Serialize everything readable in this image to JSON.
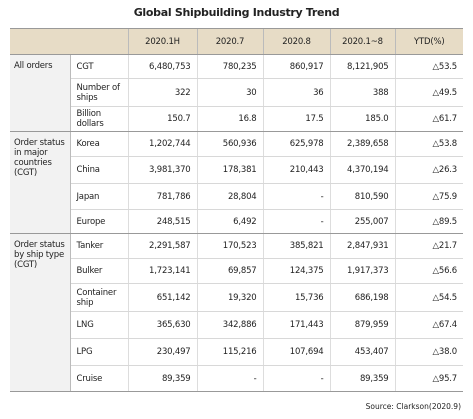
{
  "title": "Global Shipbuilding Industry Trend",
  "table": {
    "header": [
      "2020.1H",
      "2020.7",
      "2020.8",
      "2020.1~8",
      "YTD(%)"
    ],
    "groups": [
      {
        "label": "All orders",
        "rows": [
          {
            "label": "CGT",
            "cells": [
              "6,480,753",
              "780,235",
              "860,917",
              "8,121,905",
              "△53.5"
            ]
          },
          {
            "label": "Number of ships",
            "cells": [
              "322",
              "30",
              "36",
              "388",
              "△49.5"
            ]
          },
          {
            "label": "Billion dollars",
            "cells": [
              "150.7",
              "16.8",
              "17.5",
              "185.0",
              "△61.7"
            ]
          }
        ]
      },
      {
        "label": "Order status in major countries (CGT)",
        "rows": [
          {
            "label": "Korea",
            "cells": [
              "1,202,744",
              "560,936",
              "625,978",
              "2,389,658",
              "△53.8"
            ]
          },
          {
            "label": "China",
            "cells": [
              "3,981,370",
              "178,381",
              "210,443",
              "4,370,194",
              "△26.3"
            ]
          },
          {
            "label": "Japan",
            "cells": [
              "781,786",
              "28,804",
              "-",
              "810,590",
              "△75.9"
            ]
          },
          {
            "label": "Europe",
            "cells": [
              "248,515",
              "6,492",
              "-",
              "255,007",
              "△89.5"
            ]
          }
        ]
      },
      {
        "label": "Order status by ship type (CGT)",
        "rows": [
          {
            "label": "Tanker",
            "cells": [
              "2,291,587",
              "170,523",
              "385,821",
              "2,847,931",
              "△21.7"
            ]
          },
          {
            "label": "Bulker",
            "cells": [
              "1,723,141",
              "69,857",
              "124,375",
              "1,917,373",
              "△56.6"
            ]
          },
          {
            "label": "Container ship",
            "cells": [
              "651,142",
              "19,320",
              "15,736",
              "686,198",
              "△54.5"
            ]
          },
          {
            "label": "LNG",
            "cells": [
              "365,630",
              "342,886",
              "171,443",
              "879,959",
              "△67.4"
            ]
          },
          {
            "label": "LPG",
            "cells": [
              "230,497",
              "115,216",
              "107,694",
              "453,407",
              "△38.0"
            ]
          },
          {
            "label": "Cruise",
            "cells": [
              "89,359",
              "-",
              "-",
              "89,359",
              "△95.7"
            ]
          }
        ]
      }
    ]
  },
  "source": "Source: Clarkson(2020.9)"
}
